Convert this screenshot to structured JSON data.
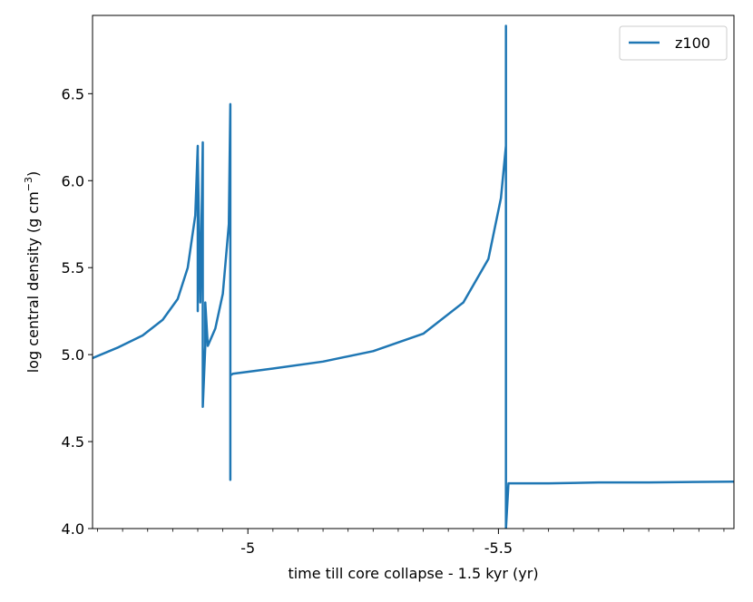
{
  "chart_data": {
    "type": "line",
    "xlabel": "time till core collapse - 1.5 kyr (yr)",
    "ylabel": "log central density (g cm",
    "ylabel_sup": "−3",
    "ylabel_close": ")",
    "xlim": [
      -4.69,
      -5.97
    ],
    "ylim": [
      4.0,
      6.95
    ],
    "x_ticks": [
      {
        "value": -5.0,
        "label": "-5"
      },
      {
        "value": -5.5,
        "label": "-5.5"
      }
    ],
    "y_ticks": [
      {
        "value": 4.0,
        "label": "4.0"
      },
      {
        "value": 4.5,
        "label": "4.5"
      },
      {
        "value": 5.0,
        "label": "5.0"
      },
      {
        "value": 5.5,
        "label": "5.5"
      },
      {
        "value": 6.0,
        "label": "6.0"
      },
      {
        "value": 6.5,
        "label": "6.5"
      }
    ],
    "grid": false,
    "legend": {
      "position": "top-right"
    },
    "series": [
      {
        "name": "z100",
        "color": "#1f77b4",
        "x": [
          -4.69,
          -4.74,
          -4.79,
          -4.83,
          -4.86,
          -4.88,
          -4.895,
          -4.9,
          -4.9,
          -4.9,
          -4.905,
          -4.91,
          -4.91,
          -4.915,
          -4.915,
          -4.915,
          -4.915,
          -4.92,
          -4.935,
          -4.95,
          -4.962,
          -4.965,
          -4.965,
          -4.965,
          -4.965,
          -4.97,
          -5.05,
          -5.15,
          -5.25,
          -5.35,
          -5.43,
          -5.48,
          -5.505,
          -5.515,
          -5.515,
          -5.515,
          -5.52,
          -5.6,
          -5.7,
          -5.8,
          -5.97
        ],
        "y": [
          4.98,
          5.04,
          5.11,
          5.2,
          5.32,
          5.5,
          5.8,
          6.2,
          5.25,
          6.15,
          5.3,
          6.22,
          4.7,
          5.05,
          5.1,
          5.2,
          5.3,
          5.05,
          5.15,
          5.35,
          5.75,
          6.44,
          4.28,
          4.6,
          4.88,
          4.89,
          4.92,
          4.96,
          5.02,
          5.12,
          5.3,
          5.55,
          5.9,
          6.2,
          6.89,
          4.0,
          4.26,
          4.26,
          4.265,
          4.265,
          4.27
        ]
      }
    ]
  }
}
